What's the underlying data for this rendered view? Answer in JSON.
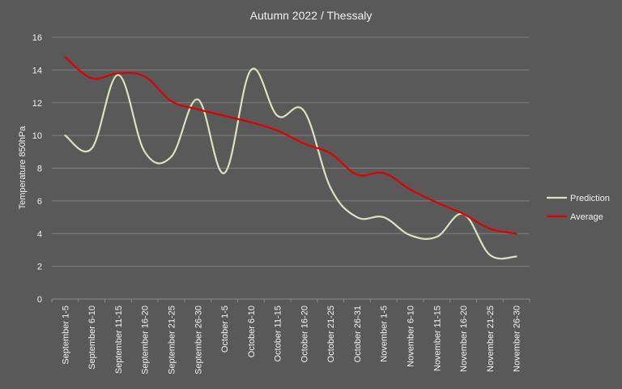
{
  "chart_data": {
    "type": "line",
    "title": "Autumn  2022 / Thessaly",
    "xlabel": "",
    "ylabel": "Temperature 850hPa",
    "ylim": [
      0,
      16
    ],
    "yticks": [
      0,
      2,
      4,
      6,
      8,
      10,
      12,
      14,
      16
    ],
    "grid": true,
    "legend": "right",
    "categories": [
      "September 1-5",
      "September 6-10",
      "September 11-15",
      "September 16-20",
      "September 21-25",
      "September 26-30",
      "October 1-5",
      "October 6-10",
      "October 11-15",
      "October 16-20",
      "October 21-25",
      "October 26-31",
      "November 1-5",
      "November 6-10",
      "November 11-15",
      "November 16-20",
      "November 21-25",
      "November 26-30"
    ],
    "series": [
      {
        "name": "Prediction",
        "color": "#d7e4bd",
        "values": [
          10,
          9.2,
          13.7,
          9.0,
          8.7,
          12.2,
          7.7,
          14.0,
          11.2,
          11.5,
          6.8,
          5.0,
          5.0,
          3.9,
          3.8,
          5.2,
          2.7,
          2.6
        ]
      },
      {
        "name": "Average",
        "color": "#e00000",
        "values": [
          14.8,
          13.5,
          13.8,
          13.6,
          12.1,
          11.6,
          11.2,
          10.8,
          10.3,
          9.5,
          8.9,
          7.6,
          7.7,
          6.7,
          5.9,
          5.2,
          4.3,
          4.0
        ]
      }
    ]
  }
}
